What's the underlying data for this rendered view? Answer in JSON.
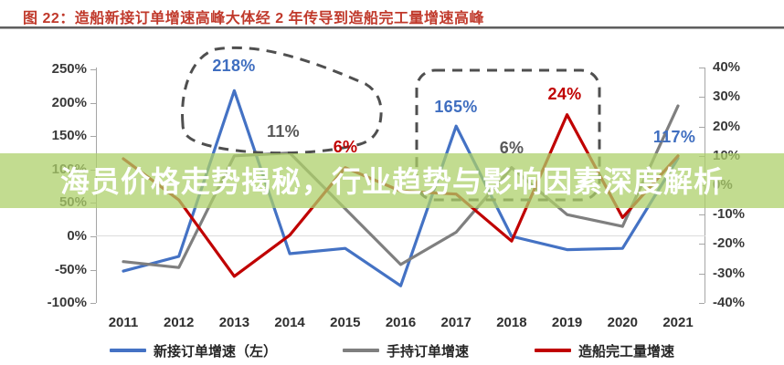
{
  "header": {
    "title": "图 22：造船新接订单增速高峰大体经 2 年传导到造船完工量增速高峰"
  },
  "watermark": {
    "text": "海员价格走势揭秘，行业趋势与影响因素深度解析"
  },
  "chart_data": {
    "type": "line",
    "title": "图 22：造船新接订单增速高峰大体经 2 年传导到造船完工量增速高峰",
    "categories": [
      "2011",
      "2012",
      "2013",
      "2014",
      "2015",
      "2016",
      "2017",
      "2018",
      "2019",
      "2020",
      "2021"
    ],
    "series": [
      {
        "name": "新接订单增速（左）",
        "axis": "left",
        "color": "#4472c4",
        "values": [
          -52,
          -30,
          218,
          -26,
          -18,
          -74,
          165,
          0,
          -20,
          -18,
          117
        ]
      },
      {
        "name": "手持订单增速",
        "axis": "right",
        "color": "#7f7f7f",
        "values": [
          -26,
          -28,
          10,
          11,
          -8,
          -27,
          -16,
          6,
          -10,
          -14,
          27
        ]
      },
      {
        "name": "造船完工量增速",
        "axis": "right",
        "color": "#c00000",
        "values": [
          9,
          -5,
          -31,
          -17,
          6,
          -2,
          -3,
          -19,
          24,
          -11,
          10
        ]
      }
    ],
    "left_axis": {
      "ticks": [
        "250%",
        "200%",
        "150%",
        "100%",
        "50%",
        "0%",
        "-50%",
        "-100%"
      ],
      "range": [
        -100,
        250
      ]
    },
    "right_axis": {
      "ticks": [
        "40%",
        "30%",
        "20%",
        "10%",
        "0%",
        "-10%",
        "-20%",
        "-30%",
        "-40%"
      ],
      "range": [
        -40,
        40
      ]
    },
    "grid": "horizontal zero line only",
    "legend_position": "bottom",
    "annotations": [
      {
        "text": "218%",
        "year": "2013",
        "series": "新接订单增速（左）",
        "color": "#3f6ec0"
      },
      {
        "text": "11%",
        "year": "2014",
        "series": "手持订单增速",
        "color": "#595959"
      },
      {
        "text": "6%",
        "year": "2015",
        "series": "造船完工量增速",
        "color": "#c00000"
      },
      {
        "text": "165%",
        "year": "2017",
        "series": "新接订单增速（左）",
        "color": "#3f6ec0"
      },
      {
        "text": "6%",
        "year": "2018",
        "series": "手持订单增速",
        "color": "#595959"
      },
      {
        "text": "24%",
        "year": "2019",
        "series": "造船完工量增速",
        "color": "#c00000"
      },
      {
        "text": "117%",
        "year": "2021",
        "series": "新接订单增速（左）",
        "color": "#3f6ec0"
      }
    ],
    "highlight_shapes": [
      "dashed rounded box tilted around 2013 peak",
      "dashed rounded box around 2017-2019 peaks"
    ]
  }
}
